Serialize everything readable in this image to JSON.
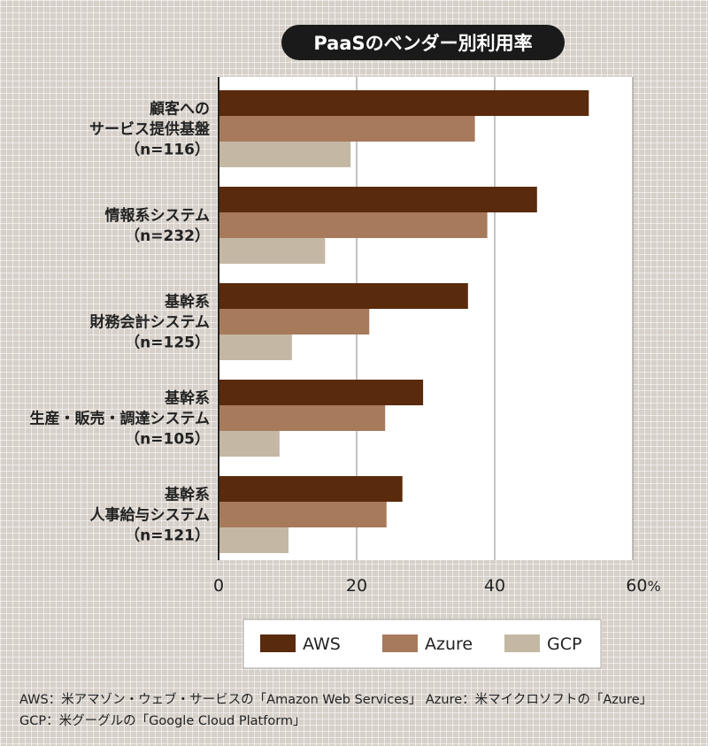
{
  "chart_data": {
    "type": "bar",
    "orientation": "horizontal",
    "title": "PaaSのベンダー別利用率",
    "categories": [
      [
        "顧客への",
        "サービス提供基盤",
        "（n=116）"
      ],
      [
        "情報系システム",
        "（n=232）"
      ],
      [
        "基幹系",
        "財務会計システム",
        "（n=125）"
      ],
      [
        "基幹系",
        "生産・販売・調達システム",
        "（n=105）"
      ],
      [
        "基幹系",
        "人事給与システム",
        "（n=121）"
      ]
    ],
    "series": [
      {
        "name": "AWS",
        "color": "#5a2a0c",
        "values": [
          53.5,
          46,
          36,
          29.5,
          26.5
        ]
      },
      {
        "name": "Azure",
        "color": "#a77a5b",
        "values": [
          37,
          38.8,
          21.7,
          24,
          24.2
        ]
      },
      {
        "name": "GCP",
        "color": "#c4b8a4",
        "values": [
          19,
          15.3,
          10.5,
          8.7,
          10
        ]
      }
    ],
    "xlim": [
      0,
      60
    ],
    "xticks": [
      0,
      20,
      40,
      60
    ],
    "x_unit": "%",
    "grid": true,
    "legend": "bottom"
  },
  "notes": [
    "AWS：米アマゾン・ウェブ・サービスの「Amazon Web Services」 Azure：米マイクロソフトの「Azure」",
    "GCP：米グーグルの「Google Cloud Platform」"
  ]
}
